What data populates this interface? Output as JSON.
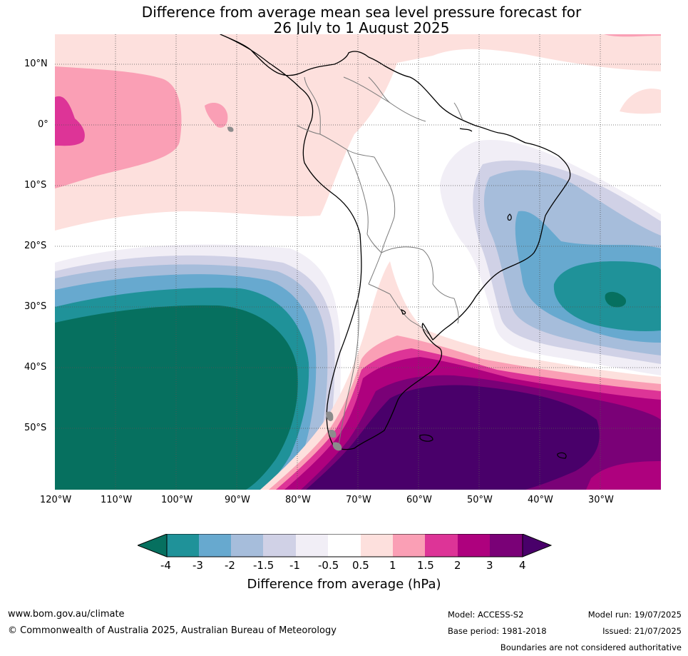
{
  "title": {
    "line1": "Difference from average mean sea level pressure forecast for",
    "line2": "26 July to 1 August 2025"
  },
  "map": {
    "lat_ticks": [
      "10°N",
      "0°",
      "10°S",
      "20°S",
      "30°S",
      "40°S",
      "50°S"
    ],
    "lon_ticks": [
      "120°W",
      "110°W",
      "100°W",
      "90°W",
      "80°W",
      "70°W",
      "60°W",
      "50°W",
      "40°W",
      "30°W"
    ],
    "colors": {
      "lt_-4": "#06705f",
      "-4_-3": "#1f9299",
      "-3_-2": "#67a9cf",
      "-2_-1.5": "#a6bddb",
      "-1.5_-1": "#d0d1e6",
      "-1_-0.5": "#f1eef6",
      "-0.5_0.5": "#ffffff",
      "0.5_1": "#fde0dd",
      "1_1.5": "#fa9fb5",
      "1.5_2": "#dd3497",
      "2_3": "#ae017e",
      "3_4": "#7a0177",
      "gt_4": "#49006a"
    }
  },
  "legend": {
    "labels": [
      "-4",
      "-3",
      "-2",
      "-1.5",
      "-1",
      "-0.5",
      "0.5",
      "1",
      "1.5",
      "2",
      "3",
      "4"
    ],
    "title": "Difference from average (hPa)"
  },
  "footer": {
    "website": "www.bom.gov.au/climate",
    "copyright": "© Commonwealth of Australia 2025, Australian Bureau of Meteorology",
    "model": "Model: ACCESS-S2",
    "base_period": "Base period: 1981-2018",
    "model_run": "Model run: 19/07/2025",
    "issued": "Issued: 21/07/2025",
    "disclaimer": "Boundaries are not considered authoritative"
  }
}
